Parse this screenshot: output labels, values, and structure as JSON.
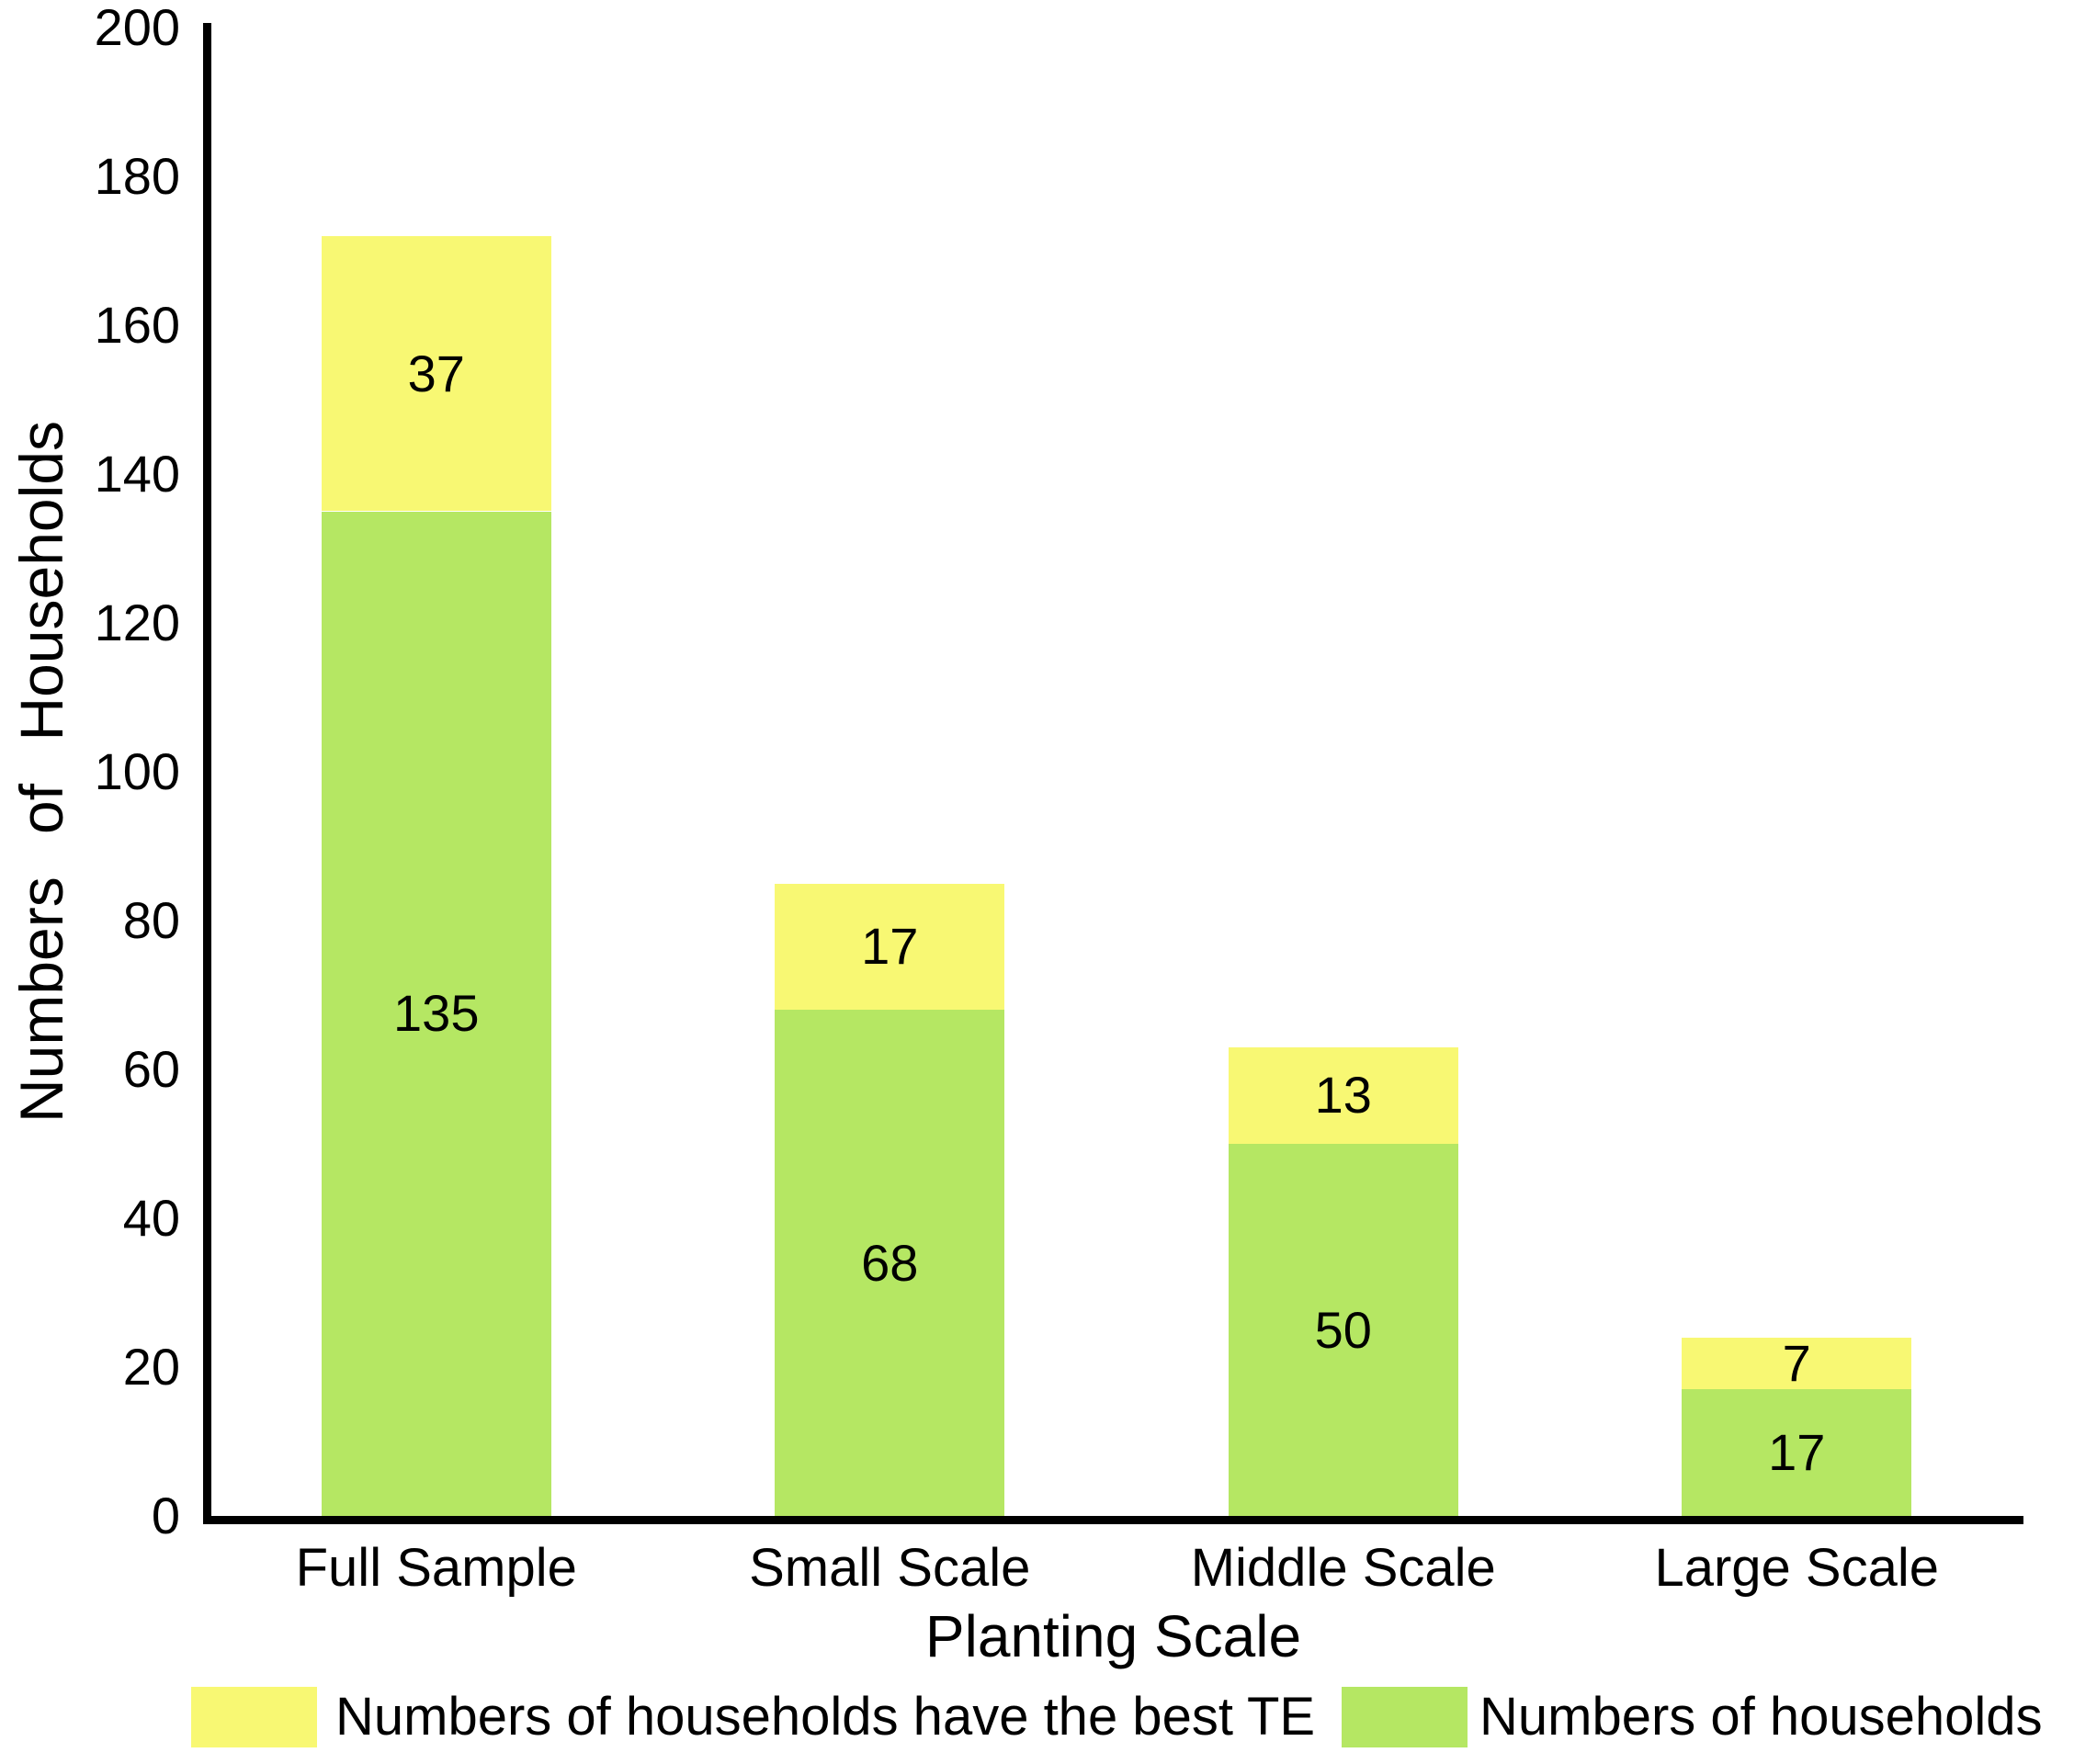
{
  "figure": {
    "background": "#ffffff",
    "axis_color": "#000000",
    "text_color": "#000000"
  },
  "chart_data": {
    "type": "bar",
    "stacked": true,
    "title": "",
    "xlabel": "Planting Scale",
    "ylabel": "Numbers of Households",
    "categories": [
      "Full Sample",
      "Small Scale",
      "Middle Scale",
      "Large Scale"
    ],
    "series": [
      {
        "name": "Numbers of households",
        "color": "#b5e763",
        "values": [
          135,
          68,
          50,
          17
        ]
      },
      {
        "name": "Numbers of households have the best TE",
        "color": "#f8f873",
        "values": [
          37,
          17,
          13,
          7
        ]
      }
    ],
    "segment_labels_visible": true,
    "ylim": [
      0,
      200
    ],
    "yticks": [
      0,
      20,
      40,
      60,
      80,
      100,
      120,
      140,
      160,
      180,
      200
    ],
    "grid": false,
    "legend_position": "bottom",
    "legend": [
      {
        "label": "Numbers of households have the best TE",
        "color": "#f8f873"
      },
      {
        "label": "Numbers of households",
        "color": "#b5e763"
      }
    ]
  }
}
